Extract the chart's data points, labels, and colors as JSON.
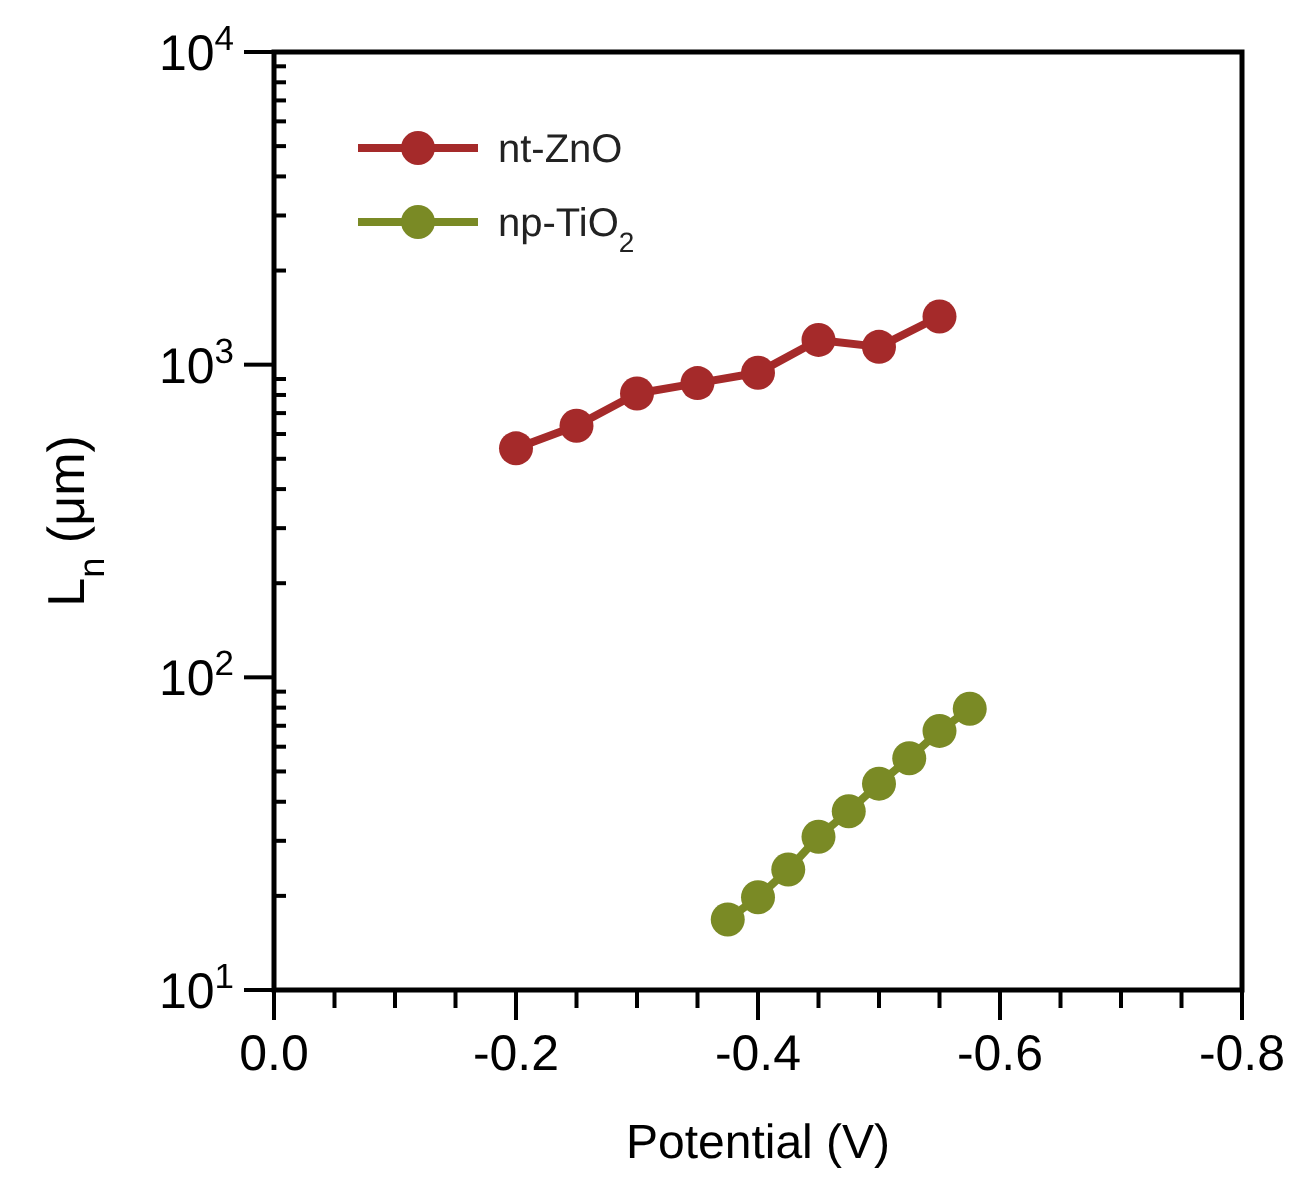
{
  "chart_data": {
    "type": "line",
    "xlabel": "Potential (V)",
    "ylabel": "L$_{n}$ (μm)",
    "log": "y",
    "legend": "top left",
    "marker": "circle",
    "line_style": "solid",
    "grid": false,
    "xlim": [
      0,
      -0.8
    ],
    "xticks": [
      {
        "value": 0,
        "label": "0.0"
      },
      {
        "value": -0.05,
        "label": null
      },
      {
        "value": -0.1,
        "label": null
      },
      {
        "value": -0.15,
        "label": null
      },
      {
        "value": -0.2,
        "label": "-0.2"
      },
      {
        "value": -0.25,
        "label": null
      },
      {
        "value": -0.3,
        "label": null
      },
      {
        "value": -0.35,
        "label": null
      },
      {
        "value": -0.4,
        "label": "-0.4"
      },
      {
        "value": -0.45,
        "label": null
      },
      {
        "value": -0.5,
        "label": null
      },
      {
        "value": -0.55,
        "label": null
      },
      {
        "value": -0.6,
        "label": "-0.6"
      },
      {
        "value": -0.65,
        "label": null
      },
      {
        "value": -0.7,
        "label": null
      },
      {
        "value": -0.75,
        "label": null
      },
      {
        "value": -0.8,
        "label": "-0.8"
      }
    ],
    "ylim": [
      10,
      10000
    ],
    "yticks": [
      {
        "value": 10,
        "label": "10$^{1}$"
      },
      {
        "value": 20,
        "label": null
      },
      {
        "value": 30,
        "label": null
      },
      {
        "value": 40,
        "label": null
      },
      {
        "value": 50,
        "label": null
      },
      {
        "value": 60,
        "label": null
      },
      {
        "value": 70,
        "label": null
      },
      {
        "value": 80,
        "label": null
      },
      {
        "value": 90,
        "label": null
      },
      {
        "value": 100,
        "label": "10$^{2}$"
      },
      {
        "value": 200,
        "label": null
      },
      {
        "value": 300,
        "label": null
      },
      {
        "value": 400,
        "label": null
      },
      {
        "value": 500,
        "label": null
      },
      {
        "value": 600,
        "label": null
      },
      {
        "value": 700,
        "label": null
      },
      {
        "value": 800,
        "label": null
      },
      {
        "value": 900,
        "label": null
      },
      {
        "value": 1000,
        "label": "10$^{3}$"
      },
      {
        "value": 2000,
        "label": null
      },
      {
        "value": 3000,
        "label": null
      },
      {
        "value": 4000,
        "label": null
      },
      {
        "value": 5000,
        "label": null
      },
      {
        "value": 6000,
        "label": null
      },
      {
        "value": 7000,
        "label": null
      },
      {
        "value": 8000,
        "label": null
      },
      {
        "value": 9000,
        "label": null
      },
      {
        "value": 10000,
        "label": "10$^{4}$"
      }
    ],
    "series": [
      {
        "name": "nt-ZnO",
        "color": "#a52a2a",
        "x": [
          -0.2,
          -0.25,
          -0.3,
          -0.35,
          -0.4,
          -0.45,
          -0.5,
          -0.55
        ],
        "values": [
          540,
          638,
          809,
          873,
          942,
          1200,
          1140,
          1426
        ]
      },
      {
        "name": "np-TiO$_{2}$",
        "color": "#7a8a25",
        "x": [
          -0.375,
          -0.4,
          -0.425,
          -0.45,
          -0.475,
          -0.5,
          -0.525,
          -0.55,
          -0.575
        ],
        "values": [
          16.8,
          19.8,
          24.3,
          30.9,
          37.3,
          45.7,
          55.1,
          67.4,
          79.3
        ]
      }
    ]
  }
}
